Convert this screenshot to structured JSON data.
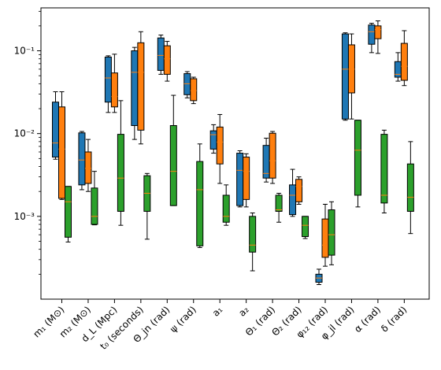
{
  "chart_data": {
    "type": "box",
    "yscale": "log",
    "ylim": [
      0.0001,
      0.33
    ],
    "ytick_labels": [
      "10⁻³",
      "10⁻²",
      "10⁻¹"
    ],
    "ytick_values": [
      0.001,
      0.01,
      0.1
    ],
    "categories": [
      "m₁ (M⊙)",
      "m₂ (M⊙)",
      "d_L (Mpc)",
      "t₀ (seconds)",
      "Θ_jn (rad)",
      "ψ (rad)",
      "a₁",
      "a₂",
      "Θ₁ (rad)",
      "Θ₂ (rad)",
      "φ₁₂ (rad)",
      "φ_jl (rad)",
      "α (rad)",
      "δ (rad)"
    ],
    "colors": [
      "#1f77b4",
      "#ff7f0e",
      "#2ca02c"
    ],
    "median_color": "#ff7f0e",
    "series": [
      {
        "boxes": [
          {
            "whislo": 0.0049,
            "q1": 0.0052,
            "med": 0.0077,
            "q3": 0.024,
            "whishi": 0.032
          },
          {
            "whislo": 0.0021,
            "q1": 0.0024,
            "med": 0.0048,
            "q3": 0.0102,
            "whishi": 0.0106
          },
          {
            "whislo": 0.018,
            "q1": 0.024,
            "med": 0.047,
            "q3": 0.084,
            "whishi": 0.087
          },
          {
            "whislo": 0.0085,
            "q1": 0.0125,
            "med": 0.055,
            "q3": 0.1,
            "whishi": 0.11
          },
          {
            "whislo": 0.052,
            "q1": 0.058,
            "med": 0.088,
            "q3": 0.143,
            "whishi": 0.155
          },
          {
            "whislo": 0.027,
            "q1": 0.0295,
            "med": 0.04,
            "q3": 0.053,
            "whishi": 0.056
          },
          {
            "whislo": 0.0058,
            "q1": 0.0065,
            "med": 0.0097,
            "q3": 0.0108,
            "whishi": 0.0128
          },
          {
            "whislo": 0.0013,
            "q1": 0.00135,
            "med": 0.0036,
            "q3": 0.0058,
            "whishi": 0.0062
          },
          {
            "whislo": 0.0026,
            "q1": 0.0029,
            "med": 0.0033,
            "q3": 0.0072,
            "whishi": 0.0088
          },
          {
            "whislo": 0.001,
            "q1": 0.00105,
            "med": 0.0018,
            "q3": 0.0024,
            "whishi": 0.0037
          },
          {
            "whislo": 0.00015,
            "q1": 0.00016,
            "med": 0.00018,
            "q3": 0.0002,
            "whishi": 0.00023
          },
          {
            "whislo": 0.0145,
            "q1": 0.015,
            "med": 0.06,
            "q3": 0.16,
            "whishi": 0.165
          },
          {
            "whislo": 0.095,
            "q1": 0.12,
            "med": 0.17,
            "q3": 0.205,
            "whishi": 0.215
          },
          {
            "whislo": 0.043,
            "q1": 0.048,
            "med": 0.052,
            "q3": 0.074,
            "whishi": 0.095
          }
        ]
      },
      {
        "boxes": [
          {
            "whislo": 0.0016,
            "q1": 0.00165,
            "med": 0.0065,
            "q3": 0.021,
            "whishi": 0.032
          },
          {
            "whislo": 0.002,
            "q1": 0.0025,
            "med": 0.0038,
            "q3": 0.006,
            "whishi": 0.0085
          },
          {
            "whislo": 0.018,
            "q1": 0.021,
            "med": 0.028,
            "q3": 0.054,
            "whishi": 0.091
          },
          {
            "whislo": 0.0075,
            "q1": 0.011,
            "med": 0.055,
            "q3": 0.125,
            "whishi": 0.17
          },
          {
            "whislo": 0.043,
            "q1": 0.052,
            "med": 0.08,
            "q3": 0.115,
            "whishi": 0.13
          },
          {
            "whislo": 0.023,
            "q1": 0.025,
            "med": 0.033,
            "q3": 0.046,
            "whishi": 0.048
          },
          {
            "whislo": 0.0025,
            "q1": 0.0043,
            "med": 0.0079,
            "q3": 0.012,
            "whishi": 0.017
          },
          {
            "whislo": 0.0013,
            "q1": 0.0016,
            "med": 0.0035,
            "q3": 0.0052,
            "whishi": 0.0057
          },
          {
            "whislo": 0.0025,
            "q1": 0.0029,
            "med": 0.0047,
            "q3": 0.0101,
            "whishi": 0.0106
          },
          {
            "whislo": 0.0014,
            "q1": 0.0015,
            "med": 0.0023,
            "q3": 0.0028,
            "whishi": 0.003
          },
          {
            "whislo": 0.00025,
            "q1": 0.00032,
            "med": 0.00045,
            "q3": 0.00093,
            "whishi": 0.0014
          },
          {
            "whislo": 0.015,
            "q1": 0.031,
            "med": 0.06,
            "q3": 0.118,
            "whishi": 0.16
          },
          {
            "whislo": 0.093,
            "q1": 0.14,
            "med": 0.18,
            "q3": 0.2,
            "whishi": 0.23
          },
          {
            "whislo": 0.038,
            "q1": 0.044,
            "med": 0.065,
            "q3": 0.123,
            "whishi": 0.175
          }
        ]
      },
      {
        "boxes": [
          {
            "whislo": 0.00049,
            "q1": 0.00056,
            "med": 0.0015,
            "q3": 0.0023,
            "whishi": 0.0023
          },
          {
            "whislo": 0.00079,
            "q1": 0.0008,
            "med": 0.001,
            "q3": 0.0022,
            "whishi": 0.0035
          },
          {
            "whislo": 0.00078,
            "q1": 0.00115,
            "med": 0.0029,
            "q3": 0.0098,
            "whishi": 0.025
          },
          {
            "whislo": 0.00053,
            "q1": 0.00115,
            "med": 0.0019,
            "q3": 0.0031,
            "whishi": 0.0033
          },
          {
            "whislo": 0.00135,
            "q1": 0.00135,
            "med": 0.0035,
            "q3": 0.0125,
            "whishi": 0.029
          },
          {
            "whislo": 0.00042,
            "q1": 0.00044,
            "med": 0.0021,
            "q3": 0.0046,
            "whishi": 0.0075
          },
          {
            "whislo": 0.00078,
            "q1": 0.00085,
            "med": 0.001,
            "q3": 0.0018,
            "whishi": 0.0024
          },
          {
            "whislo": 0.00022,
            "q1": 0.00037,
            "med": 0.00045,
            "q3": 0.001,
            "whishi": 0.0011
          },
          {
            "whislo": 0.00085,
            "q1": 0.00115,
            "med": 0.0012,
            "q3": 0.0018,
            "whishi": 0.0019
          },
          {
            "whislo": 0.00054,
            "q1": 0.00057,
            "med": 0.00078,
            "q3": 0.001,
            "whishi": 0.001
          },
          {
            "whislo": 0.00026,
            "q1": 0.00034,
            "med": 0.0006,
            "q3": 0.0012,
            "whishi": 0.0015
          },
          {
            "whislo": 0.0013,
            "q1": 0.0018,
            "med": 0.0063,
            "q3": 0.0145,
            "whishi": 0.0145
          },
          {
            "whislo": 0.0011,
            "q1": 0.00145,
            "med": 0.0018,
            "q3": 0.0098,
            "whishi": 0.011
          },
          {
            "whislo": 0.00062,
            "q1": 0.00115,
            "med": 0.0017,
            "q3": 0.0043,
            "whishi": 0.008
          }
        ]
      }
    ]
  }
}
